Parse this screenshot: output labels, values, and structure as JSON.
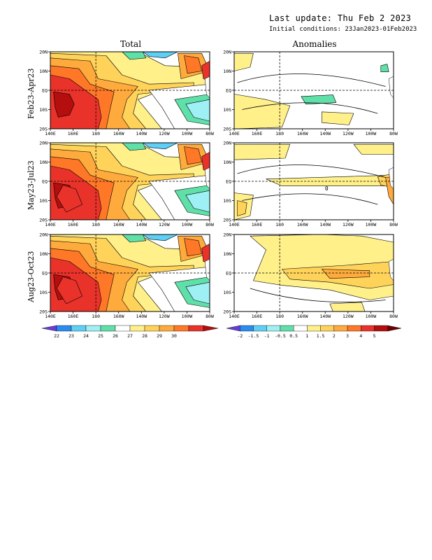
{
  "header": {
    "last_update": "Last update: Thu Feb 2 2023",
    "initial_conditions": "Initial conditions: 23Jan2023-01Feb2023"
  },
  "columns": [
    {
      "title": "Total"
    },
    {
      "title": "Anomalies"
    }
  ],
  "rows": [
    {
      "label": "Feb23-Apr23"
    },
    {
      "label": "May23-Jul23"
    },
    {
      "label": "Aug23-Oct23"
    }
  ],
  "axes": {
    "x_ticks": [
      "140E",
      "160E",
      "180",
      "160W",
      "140W",
      "120W",
      "100W",
      "80W"
    ],
    "y_ticks": [
      "20N",
      "10N",
      "EQ",
      "10S",
      "20S"
    ]
  },
  "colorbars": {
    "total": {
      "labels": [
        "22",
        "23",
        "24",
        "25",
        "26",
        "27",
        "28",
        "29",
        "30"
      ],
      "colors": [
        "#6a3cd6",
        "#2a8cf0",
        "#5fd0f5",
        "#9ef0f5",
        "#5fe0a8",
        "#ffffff",
        "#fff08a",
        "#ffd25a",
        "#ffaa3c",
        "#ff7828",
        "#e8322a",
        "#b40e0e"
      ]
    },
    "anomalies": {
      "labels": [
        "-2",
        "-1.5",
        "-1",
        "-0.5",
        "0.5",
        "1",
        "1.5",
        "2",
        "3",
        "4",
        "5"
      ],
      "colors": [
        "#6a3cd6",
        "#2a8cf0",
        "#5fd0f5",
        "#9ef0f5",
        "#5fe0a8",
        "#ffffff",
        "#fff08a",
        "#ffd25a",
        "#ffaa3c",
        "#ff7828",
        "#e8322a",
        "#b40e0e",
        "#6e0000"
      ]
    }
  },
  "chart_data": [
    {
      "type": "heatmap",
      "title": "Total",
      "row": "Feb23-Apr23",
      "xlim": [
        "140E",
        "80W"
      ],
      "ylim": [
        "20S",
        "20N"
      ],
      "levels": [
        22,
        23,
        24,
        25,
        26,
        27,
        28,
        29,
        30
      ],
      "warm_pool_max": 30,
      "cold_tongue_min": 24
    },
    {
      "type": "heatmap",
      "title": "Anomalies",
      "row": "Feb23-Apr23",
      "xlim": [
        "140E",
        "80W"
      ],
      "ylim": [
        "20S",
        "20N"
      ],
      "levels": [
        -2,
        -1.5,
        -1,
        -0.5,
        0.5,
        1,
        1.5,
        2,
        3,
        4,
        5
      ],
      "contour": "0"
    },
    {
      "type": "heatmap",
      "title": "Total",
      "row": "May23-Jul23",
      "xlim": [
        "140E",
        "80W"
      ],
      "ylim": [
        "20S",
        "20N"
      ],
      "levels": [
        22,
        23,
        24,
        25,
        26,
        27,
        28,
        29,
        30
      ],
      "warm_pool_max": 30,
      "cold_tongue_min": 24
    },
    {
      "type": "heatmap",
      "title": "Anomalies",
      "row": "May23-Jul23",
      "xlim": [
        "140E",
        "80W"
      ],
      "ylim": [
        "20S",
        "20N"
      ],
      "levels": [
        -2,
        -1.5,
        -1,
        -0.5,
        0.5,
        1,
        1.5,
        2,
        3,
        4,
        5
      ],
      "contour": "0"
    },
    {
      "type": "heatmap",
      "title": "Total",
      "row": "Aug23-Oct23",
      "xlim": [
        "140E",
        "80W"
      ],
      "ylim": [
        "20S",
        "20N"
      ],
      "levels": [
        22,
        23,
        24,
        25,
        26,
        27,
        28,
        29,
        30
      ],
      "warm_pool_max": 30,
      "cold_tongue_min": 24
    },
    {
      "type": "heatmap",
      "title": "Anomalies",
      "row": "Aug23-Oct23",
      "xlim": [
        "140E",
        "80W"
      ],
      "ylim": [
        "20S",
        "20N"
      ],
      "levels": [
        -2,
        -1.5,
        -1,
        -0.5,
        0.5,
        1,
        1.5,
        2,
        3,
        4,
        5
      ],
      "contour": "0"
    }
  ]
}
